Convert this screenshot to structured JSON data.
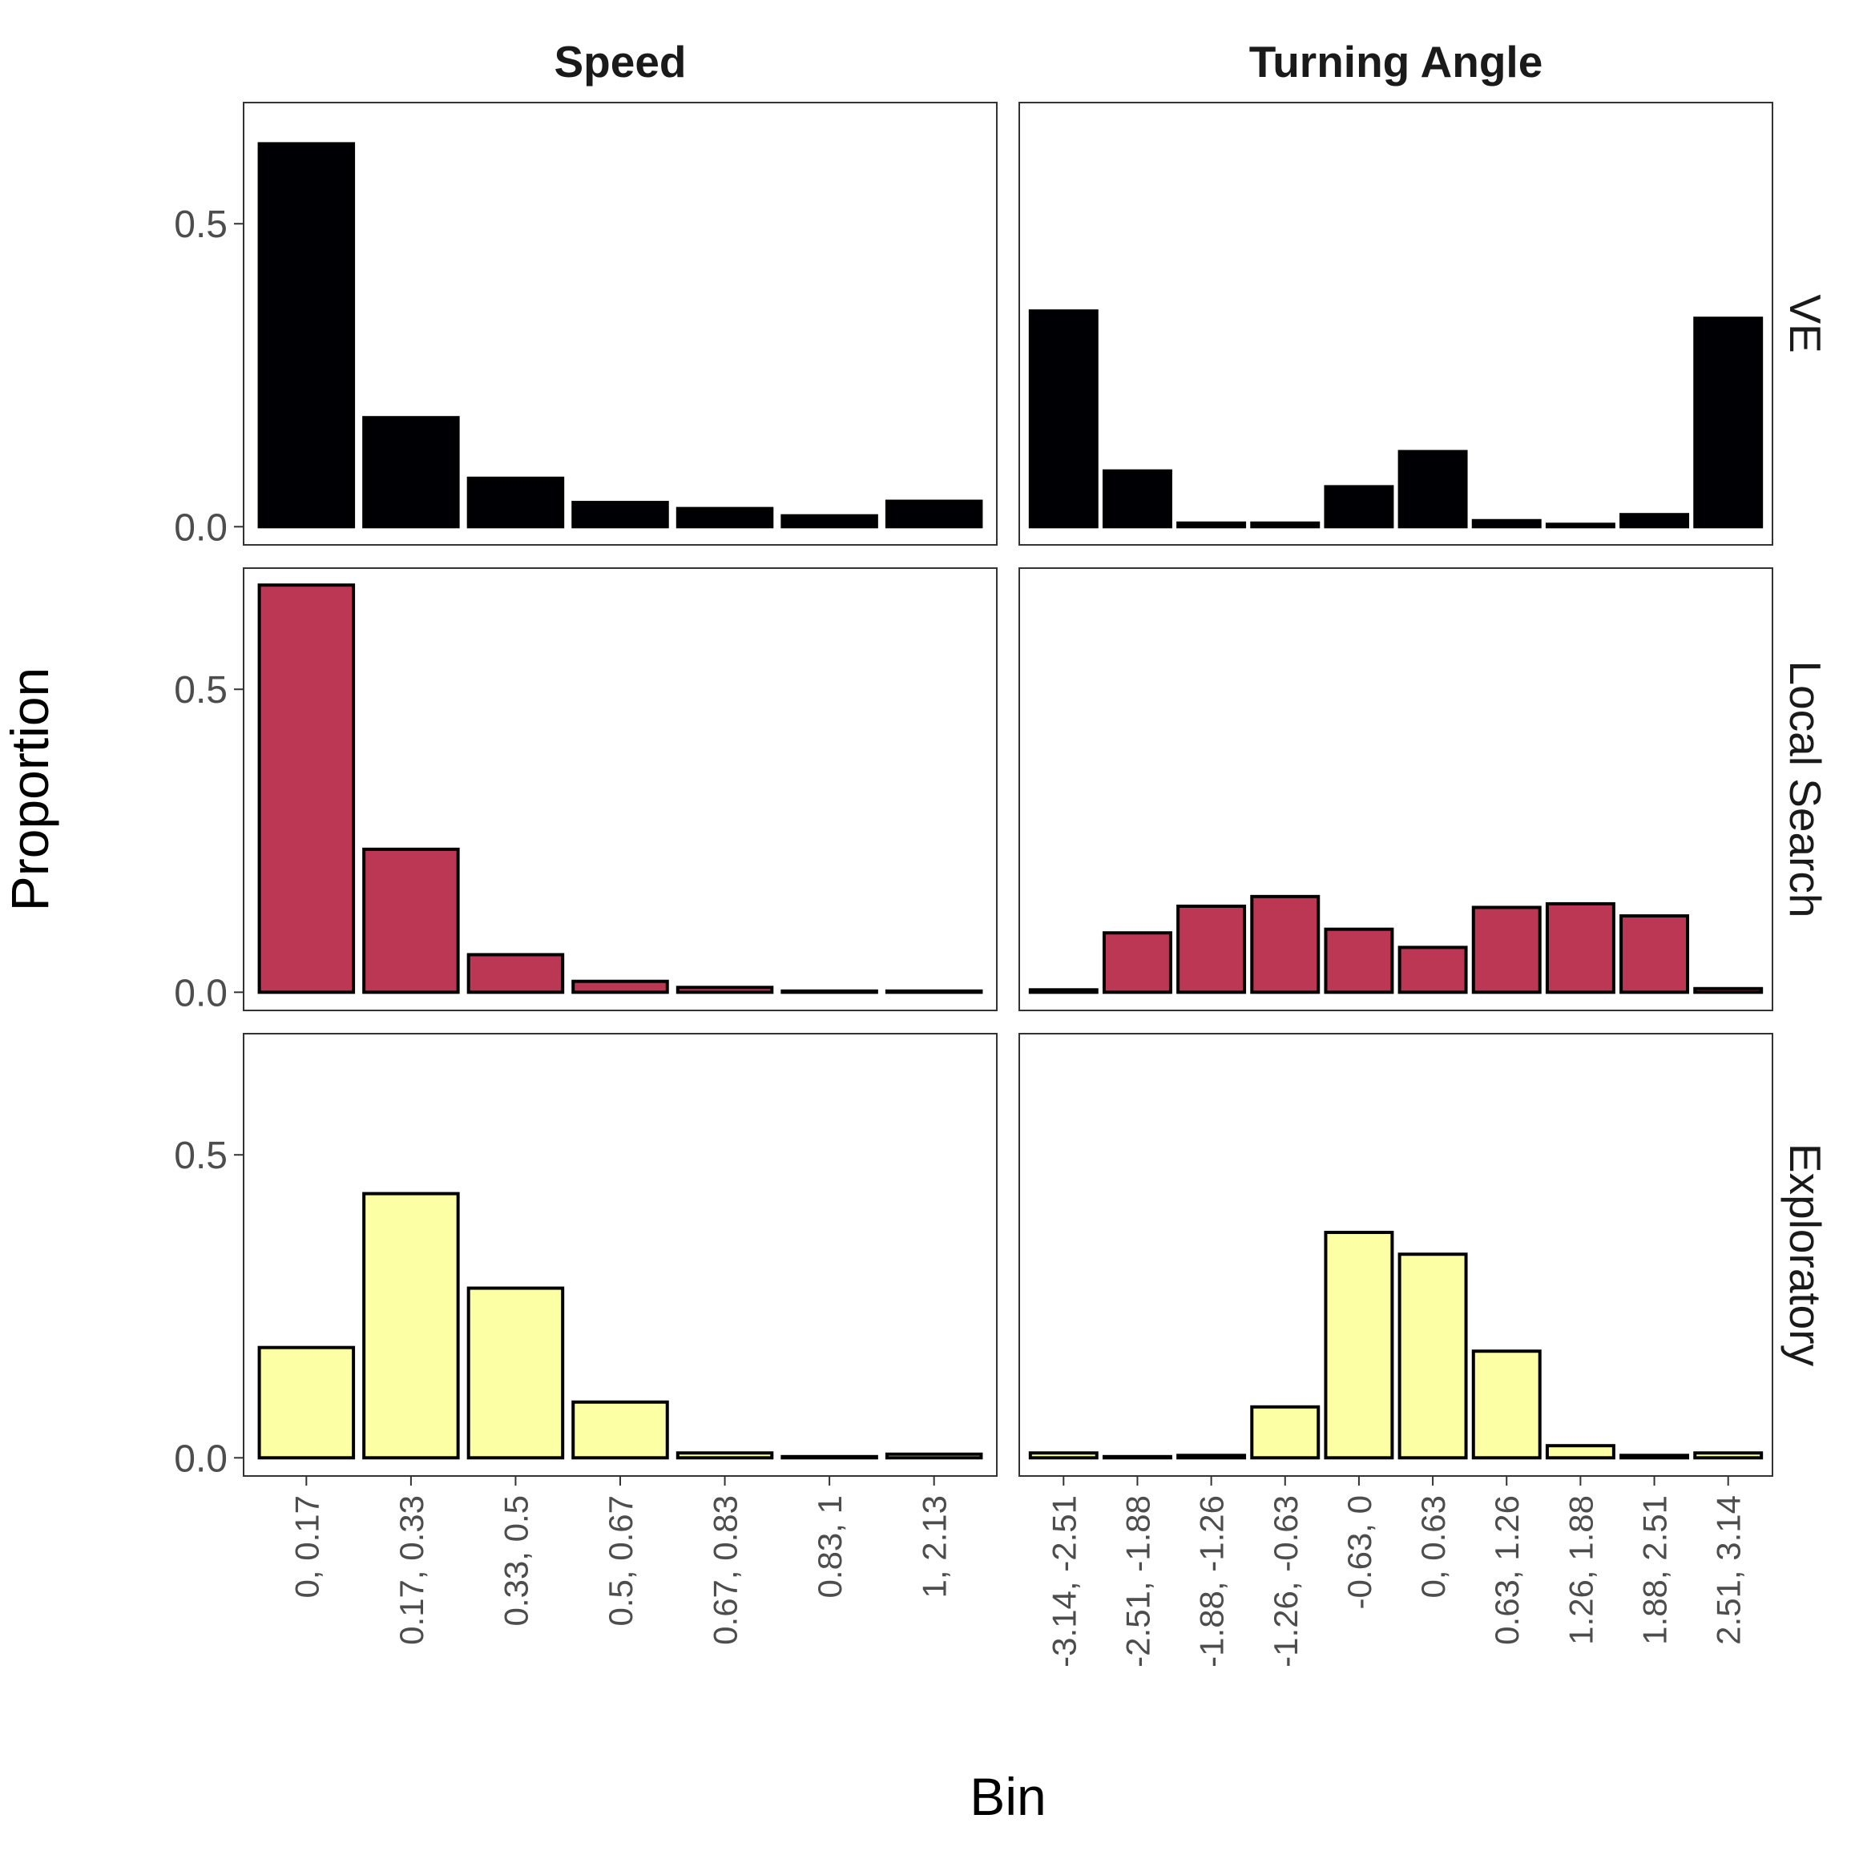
{
  "chart_data": {
    "type": "bar",
    "ylabel": "Proportion",
    "xlabel": "Bin",
    "ylim": [
      -0.03,
      0.7
    ],
    "y_ticks": [
      {
        "value": 0.0,
        "label": "0.0"
      },
      {
        "value": 0.5,
        "label": "0.5"
      }
    ],
    "facet_columns": [
      {
        "name": "Speed",
        "categories": [
          "0, 0.17",
          "0.17, 0.33",
          "0.33, 0.5",
          "0.5, 0.67",
          "0.67, 0.83",
          "0.83, 1",
          "1, 2.13"
        ]
      },
      {
        "name": "Turning Angle",
        "categories": [
          "-3.14, -2.51",
          "-2.51, -1.88",
          "-1.88, -1.26",
          "-1.26, -0.63",
          "-0.63, 0",
          "0, 0.63",
          "0.63, 1.26",
          "1.26, 1.88",
          "1.88, 2.51",
          "2.51, 3.14"
        ]
      }
    ],
    "facet_rows": [
      {
        "name": "VE",
        "color": "#000004",
        "speed": [
          0.632,
          0.18,
          0.08,
          0.04,
          0.03,
          0.018,
          0.042
        ],
        "turning_angle": [
          0.356,
          0.092,
          0.006,
          0.006,
          0.066,
          0.124,
          0.01,
          0.004,
          0.02,
          0.344
        ]
      },
      {
        "name": "Local Search",
        "color": "#BB3754",
        "speed": [
          0.672,
          0.236,
          0.062,
          0.018,
          0.008,
          0.002,
          0.002
        ],
        "turning_angle": [
          0.004,
          0.098,
          0.142,
          0.158,
          0.104,
          0.074,
          0.14,
          0.146,
          0.126,
          0.006
        ]
      },
      {
        "name": "Exploratory",
        "color": "#FCFFA4",
        "speed": [
          0.182,
          0.436,
          0.28,
          0.092,
          0.008,
          0.002,
          0.006
        ],
        "turning_angle": [
          0.008,
          0.002,
          0.004,
          0.084,
          0.372,
          0.336,
          0.176,
          0.02,
          0.004,
          0.008
        ]
      }
    ]
  }
}
